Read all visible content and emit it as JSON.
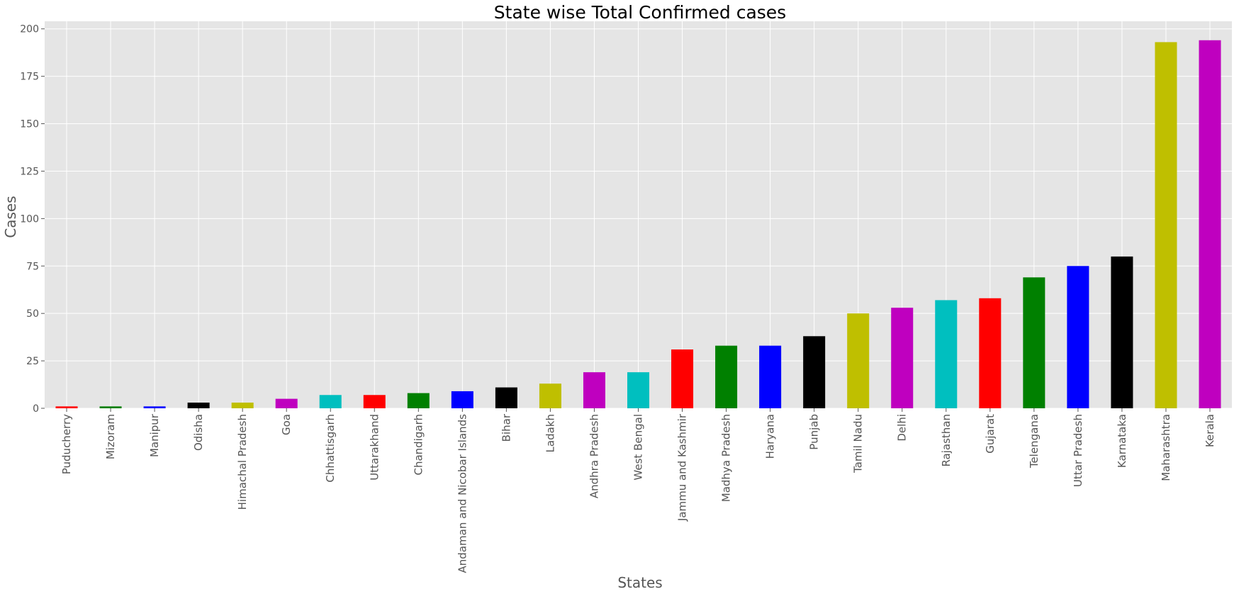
{
  "chart_data": {
    "type": "bar",
    "title": "State wise Total Confirmed cases",
    "xlabel": "States",
    "ylabel": "Cases",
    "ylim": [
      0,
      204
    ],
    "yticks": [
      0,
      25,
      50,
      75,
      100,
      125,
      150,
      175,
      200
    ],
    "grid": true,
    "legend": "none",
    "categories": [
      "Puducherry",
      "Mizoram",
      "Manipur",
      "Odisha",
      "Himachal Pradesh",
      "Goa",
      "Chhattisgarh",
      "Uttarakhand",
      "Chandigarh",
      "Andaman and Nicobar Islands",
      "Bihar",
      "Ladakh",
      "Andhra Pradesh",
      "West Bengal",
      "Jammu and Kashmir",
      "Madhya Pradesh",
      "Haryana",
      "Punjab",
      "Tamil Nadu",
      "Delhi",
      "Rajasthan",
      "Gujarat",
      "Telengana",
      "Uttar Pradesh",
      "Karnataka",
      "Maharashtra",
      "Kerala"
    ],
    "values": [
      1,
      1,
      1,
      3,
      3,
      5,
      7,
      7,
      8,
      9,
      11,
      13,
      19,
      19,
      31,
      33,
      33,
      38,
      50,
      53,
      57,
      58,
      69,
      75,
      80,
      193,
      194
    ],
    "bar_colors": [
      "#ff0000",
      "#008000",
      "#0000ff",
      "#000000",
      "#bfbf00",
      "#bf00bf",
      "#00bfbf",
      "#ff0000",
      "#008000",
      "#0000ff",
      "#000000",
      "#bfbf00",
      "#bf00bf",
      "#00bfbf",
      "#ff0000",
      "#008000",
      "#0000ff",
      "#000000",
      "#bfbf00",
      "#bf00bf",
      "#00bfbf",
      "#ff0000",
      "#008000",
      "#0000ff",
      "#000000",
      "#bfbf00",
      "#bf00bf"
    ],
    "background_color": "#e5e5e5",
    "grid_color": "#ffffff"
  }
}
